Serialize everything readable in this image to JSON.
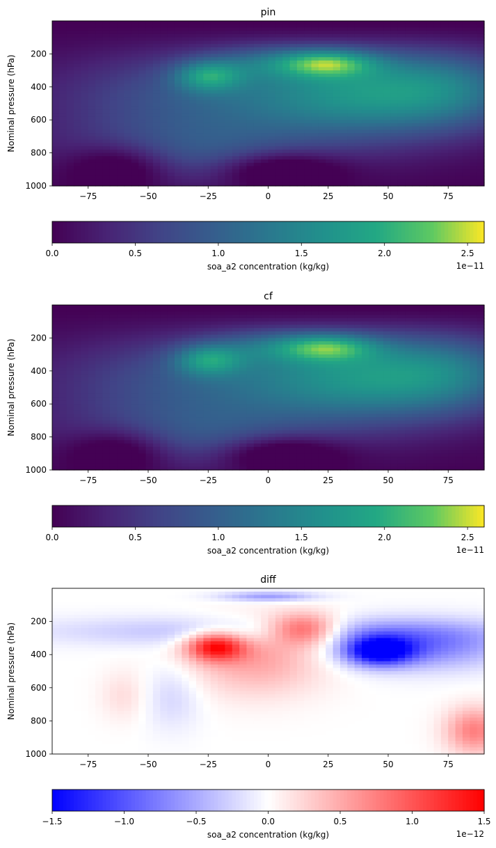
{
  "chart_data": [
    {
      "type": "heatmap",
      "title": "pin",
      "ylabel": "Nominal pressure (hPa)",
      "xlabel": "",
      "xlim": [
        -90,
        90
      ],
      "ylim": [
        1000,
        0
      ],
      "xticks": [
        "−75",
        "−50",
        "−25",
        "0",
        "25",
        "50",
        "75"
      ],
      "yticks": [
        "200",
        "400",
        "600",
        "800",
        "1000"
      ],
      "colormap": "viridis",
      "grid": false,
      "colorbar": {
        "label": "soa_a2 concentration (kg/kg)",
        "range": [
          0,
          2.6
        ],
        "ticks": [
          "0.0",
          "0.5",
          "1.0",
          "1.5",
          "2.0",
          "2.5"
        ],
        "offset": "1e−11",
        "orientation": "horizontal",
        "placement": "below"
      },
      "features": [
        {
          "lat": 25,
          "pressure": 250,
          "value": 2.55
        },
        {
          "lat": -25,
          "pressure": 330,
          "value": 2.2
        }
      ]
    },
    {
      "type": "heatmap",
      "title": "cf",
      "ylabel": "Nominal pressure (hPa)",
      "xlabel": "",
      "xlim": [
        -90,
        90
      ],
      "ylim": [
        1000,
        0
      ],
      "xticks": [
        "−75",
        "−50",
        "−25",
        "0",
        "25",
        "50",
        "75"
      ],
      "yticks": [
        "200",
        "400",
        "600",
        "800",
        "1000"
      ],
      "colormap": "viridis",
      "grid": false,
      "colorbar": {
        "label": "soa_a2 concentration (kg/kg)",
        "range": [
          0,
          2.6
        ],
        "ticks": [
          "0.0",
          "0.5",
          "1.0",
          "1.5",
          "2.0",
          "2.5"
        ],
        "offset": "1e−11",
        "orientation": "horizontal",
        "placement": "below"
      },
      "features": [
        {
          "lat": 28,
          "pressure": 250,
          "value": 2.4
        },
        {
          "lat": -25,
          "pressure": 330,
          "value": 2.15
        }
      ]
    },
    {
      "type": "heatmap",
      "title": "diff",
      "ylabel": "Nominal pressure (hPa)",
      "xlabel": "",
      "xlim": [
        -90,
        90
      ],
      "ylim": [
        1000,
        0
      ],
      "xticks": [
        "−75",
        "−50",
        "−25",
        "0",
        "25",
        "50",
        "75"
      ],
      "yticks": [
        "200",
        "400",
        "600",
        "800",
        "1000"
      ],
      "colormap": "bwr",
      "grid": false,
      "colorbar": {
        "label": "soa_a2 concentration (kg/kg)",
        "range": [
          -1.5,
          1.5
        ],
        "ticks": [
          "−1.5",
          "−1.0",
          "−0.5",
          "0.0",
          "0.5",
          "1.0",
          "1.5"
        ],
        "offset": "1e−12",
        "orientation": "horizontal",
        "placement": "below"
      },
      "features": [
        {
          "lat": -22,
          "pressure": 350,
          "value": 1.3
        },
        {
          "lat": 15,
          "pressure": 250,
          "value": 1.1
        },
        {
          "lat": 45,
          "pressure": 380,
          "value": -1.4
        },
        {
          "lat": 85,
          "pressure": 900,
          "value": 0.7
        }
      ]
    }
  ]
}
